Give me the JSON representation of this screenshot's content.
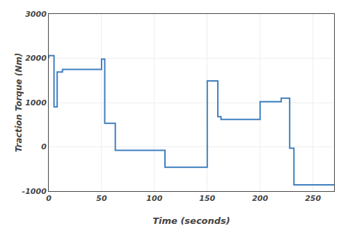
{
  "chart_data": {
    "type": "line",
    "xlabel": "Time (seconds)",
    "ylabel": "Traction Torque (Nm)",
    "x": [
      0,
      0,
      5,
      5,
      8,
      8,
      13,
      13,
      50,
      50,
      53,
      53,
      63,
      63,
      110,
      110,
      145,
      145,
      150,
      150,
      160,
      160,
      163,
      163,
      185,
      185,
      200,
      200,
      210,
      210,
      220,
      220,
      228,
      228,
      232,
      232,
      270
    ],
    "values": [
      2000,
      2060,
      2060,
      900,
      900,
      1690,
      1690,
      1750,
      1750,
      1980,
      1980,
      530,
      530,
      -80,
      -80,
      -460,
      -460,
      -460,
      -460,
      1490,
      1490,
      680,
      680,
      620,
      620,
      620,
      620,
      1020,
      1020,
      1020,
      1020,
      1100,
      1100,
      -30,
      -30,
      -860,
      -860
    ],
    "color": "#3d7ebf",
    "xlim": [
      0,
      270
    ],
    "ylim": [
      -1000,
      3000
    ],
    "xticks": [
      0,
      50,
      100,
      150,
      200,
      250
    ],
    "yticks": [
      -1000,
      0,
      1000,
      2000,
      3000
    ],
    "grid": true
  }
}
